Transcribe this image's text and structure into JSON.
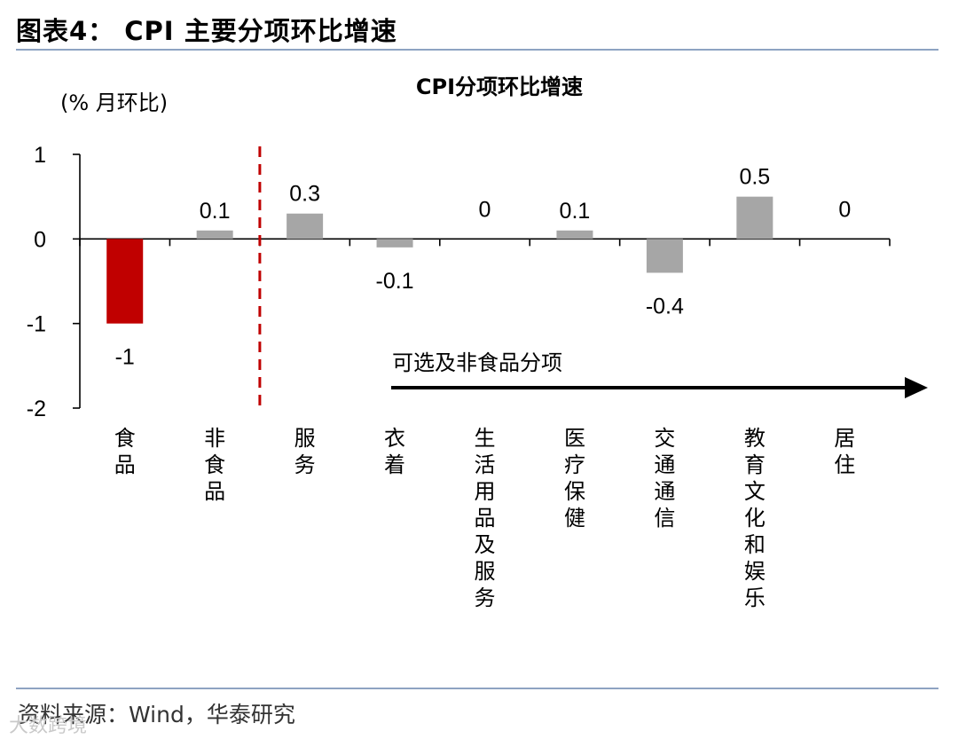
{
  "figure": {
    "title": "图表4：  CPI  主要分项环比增速",
    "source": "资料来源：Wind，华泰研究",
    "watermark": "大数跨境"
  },
  "chart_data": {
    "type": "bar",
    "title": "CPI分项环比增速",
    "ylabel": "(% 月环比)",
    "ylim": [
      -2,
      1
    ],
    "yticks": [
      1,
      0,
      -1,
      -2
    ],
    "categories": [
      "食品",
      "非食品",
      "服务",
      "衣着",
      "生活用品及服务",
      "医疗保健",
      "交通通信",
      "教育文化和娱乐",
      "居住"
    ],
    "values": [
      -1,
      0.1,
      0.3,
      -0.1,
      0,
      0.1,
      -0.4,
      0.5,
      0
    ],
    "value_labels": [
      "-1",
      "0.1",
      "0.3",
      "-0.1",
      "0",
      "0.1",
      "-0.4",
      "0.5",
      "0"
    ],
    "bar_colors": [
      "#c00000",
      "#a6a6a6",
      "#a6a6a6",
      "#a6a6a6",
      "#a6a6a6",
      "#a6a6a6",
      "#a6a6a6",
      "#a6a6a6",
      "#a6a6a6"
    ],
    "divider_after_category": 1,
    "divider_color": "#c00000",
    "annotation": "可选及非食品分项",
    "grid": false,
    "legend": "none"
  }
}
